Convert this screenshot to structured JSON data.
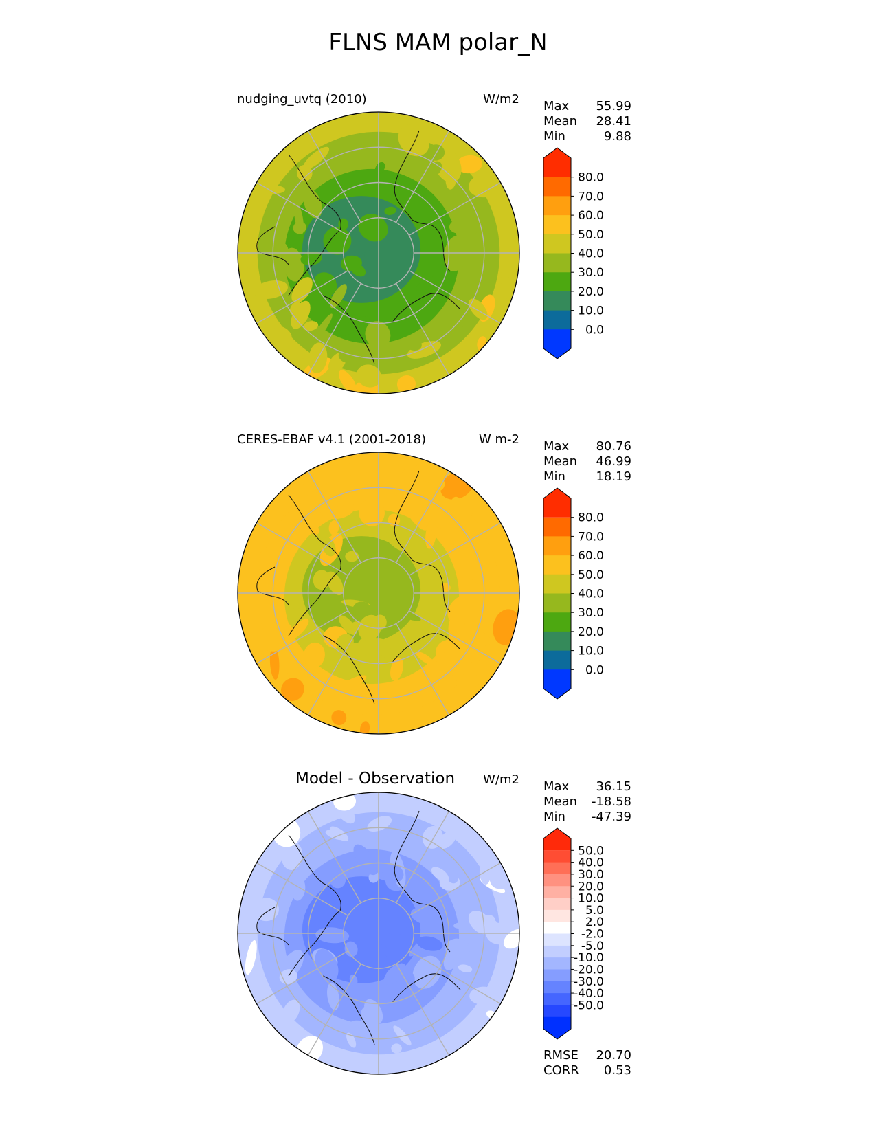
{
  "figure": {
    "title": "FLNS MAM polar_N"
  },
  "chart_data": [
    {
      "type": "heatmap",
      "projection": "north-polar-stereographic",
      "title": "nudging_uvtq (2010)",
      "units": "W/m2",
      "stats": [
        {
          "label": "Max",
          "value": "55.99"
        },
        {
          "label": "Mean",
          "value": "28.41"
        },
        {
          "label": "Min",
          "value": "9.88"
        }
      ],
      "colorbar": {
        "ticks": [
          "80.0",
          "70.0",
          "60.0",
          "50.0",
          "40.0",
          "30.0",
          "20.0",
          "10.0",
          "0.0"
        ],
        "colors": [
          "#ff2d00",
          "#ff6a00",
          "#ff9f0f",
          "#fcc11e",
          "#cfc720",
          "#96b81e",
          "#4da811",
          "#358a5a",
          "#0c6b9b",
          "#0038ff"
        ]
      },
      "field_colors": {
        "polar": "#358a5a",
        "mid": "#4da811",
        "outer": "#96b81e",
        "warm": "#cfc720",
        "hot": "#fcc11e"
      }
    },
    {
      "type": "heatmap",
      "projection": "north-polar-stereographic",
      "title": "CERES-EBAF v4.1 (2001-2018)",
      "units": "W m-2",
      "stats": [
        {
          "label": "Max",
          "value": "80.76"
        },
        {
          "label": "Mean",
          "value": "46.99"
        },
        {
          "label": "Min",
          "value": "18.19"
        }
      ],
      "colorbar": {
        "ticks": [
          "80.0",
          "70.0",
          "60.0",
          "50.0",
          "40.0",
          "30.0",
          "20.0",
          "10.0",
          "0.0"
        ],
        "colors": [
          "#ff2d00",
          "#ff6a00",
          "#ff9f0f",
          "#fcc11e",
          "#cfc720",
          "#96b81e",
          "#4da811",
          "#358a5a",
          "#0c6b9b",
          "#0038ff"
        ]
      },
      "field_colors": {
        "polar": "#96b81e",
        "mid": "#cfc720",
        "outer": "#fcc11e",
        "warm": "#fcc11e",
        "hot": "#ff9f0f"
      }
    },
    {
      "type": "heatmap",
      "projection": "north-polar-stereographic",
      "title": "Model - Observation",
      "units": "W/m2",
      "stats": [
        {
          "label": "Max",
          "value": "36.15"
        },
        {
          "label": "Mean",
          "value": "-18.58"
        },
        {
          "label": "Min",
          "value": "-47.39"
        }
      ],
      "extra_stats": [
        {
          "label": "RMSE",
          "value": "20.70"
        },
        {
          "label": "CORR",
          "value": "0.53"
        }
      ],
      "colorbar": {
        "ticks": [
          "50.0",
          "40.0",
          "30.0",
          "20.0",
          "10.0",
          "5.0",
          "2.0",
          "-2.0",
          "-5.0",
          "-10.0",
          "-20.0",
          "-30.0",
          "-40.0",
          "-50.0"
        ],
        "colors": [
          "#ff2a0a",
          "#ff4d33",
          "#ff6f57",
          "#ff9180",
          "#ffb0a3",
          "#ffcfc7",
          "#ffe6e1",
          "#ffffff",
          "#dde4ff",
          "#c2ceff",
          "#a3b6ff",
          "#859dff",
          "#6583ff",
          "#4566ff",
          "#2648ff",
          "#0030ff"
        ]
      },
      "field_colors": {
        "polar": "#6583ff",
        "mid": "#859dff",
        "outer": "#a3b6ff",
        "warm": "#c2ceff",
        "hot": "#ffffff"
      }
    }
  ]
}
